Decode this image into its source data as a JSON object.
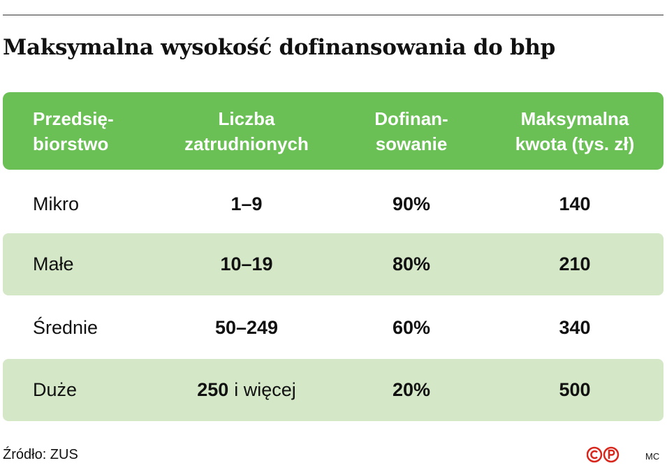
{
  "title": "Maksymalna wysokość dofinansowania do bhp",
  "table": {
    "header": [
      "Przedsię-\nbiorstwo",
      "Liczba\nzatrudnionych",
      "Dofinan-\nsowanie",
      "Maksymalna\nkwota (tys. zł)"
    ],
    "rows": [
      [
        "Mikro",
        "1–9",
        "90%",
        "140"
      ],
      [
        "Małe",
        "10–19",
        "80%",
        "210"
      ],
      [
        "Średnie",
        "50–249",
        "60%",
        "340"
      ],
      [
        "Duże",
        [
          "250",
          "i więcej"
        ],
        "20%",
        "500"
      ]
    ]
  },
  "source": "Źródło: ZUS",
  "author": "MC"
}
